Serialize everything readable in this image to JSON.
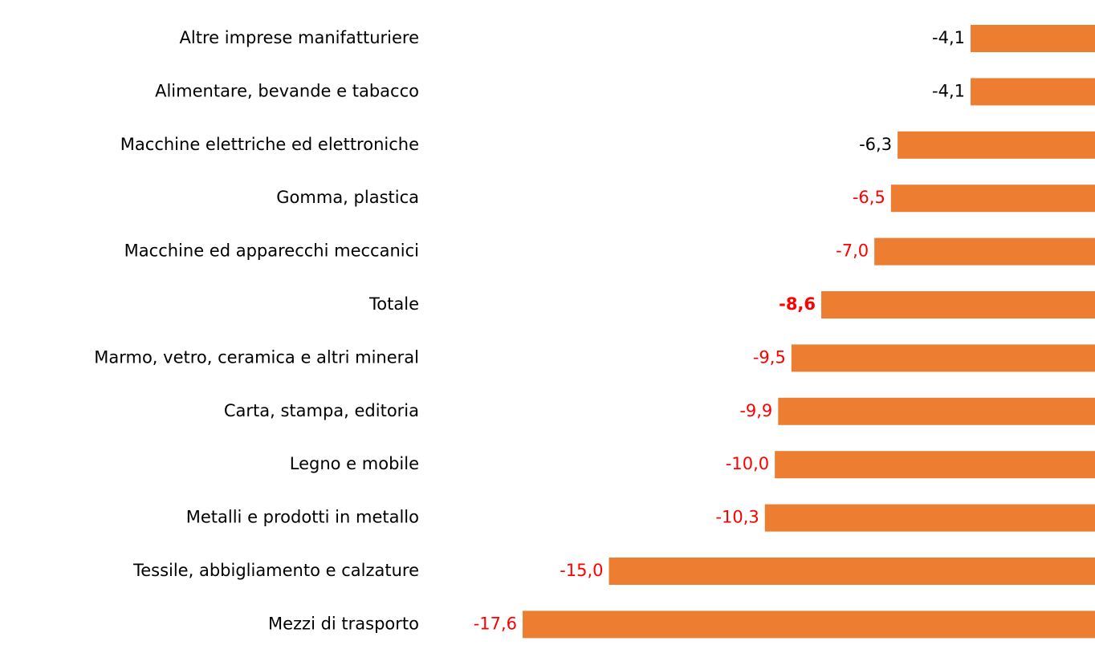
{
  "chart_data": {
    "type": "barh",
    "categories": [
      "Altre imprese manifatturiere",
      "Alimentare, bevande e tabacco",
      "Macchine elettriche ed elettroniche",
      "Gomma, plastica",
      "Macchine ed apparecchi meccanici",
      "Totale",
      "Marmo, vetro, ceramica e altri mineral",
      "Carta, stampa, editoria",
      "Legno e mobile",
      "Metalli e prodotti in metallo",
      "Tessile, abbigliamento e calzature",
      "Mezzi di trasporto"
    ],
    "values": [
      -4.1,
      -4.1,
      -6.3,
      -6.5,
      -7.0,
      -8.6,
      -9.5,
      -9.9,
      -10.0,
      -10.3,
      -15.0,
      -17.6
    ],
    "value_labels": [
      "-4,1",
      "-4,1",
      "-6,3",
      "-6,5",
      "-7,0",
      "-8,6",
      "-9,5",
      "-9,9",
      "-10,0",
      "-10,3",
      "-15,0",
      "-17,6"
    ],
    "value_label_colors": [
      "#000000",
      "#000000",
      "#000000",
      "#ff0000",
      "#ff0000",
      "#ff0000",
      "#ff0000",
      "#ff0000",
      "#ff0000",
      "#ff0000",
      "#ff0000",
      "#ff0000"
    ],
    "value_label_bold": [
      false,
      false,
      false,
      false,
      false,
      true,
      false,
      false,
      false,
      false,
      false,
      false
    ],
    "color": "#ed7d31",
    "xlim": [
      -18,
      0
    ],
    "grid": false
  }
}
